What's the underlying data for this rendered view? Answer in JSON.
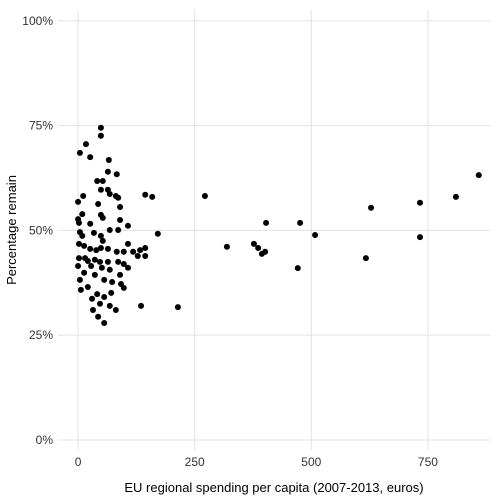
{
  "chart_data": {
    "type": "scatter",
    "x_label": "EU regional spending per capita (2007-2013, euros)",
    "y_label": "Percentage remain",
    "color": "#000000",
    "grid": true,
    "xlim": [
      -43,
      883
    ],
    "ylim": [
      -2.4,
      102.6
    ],
    "xticks": [
      0,
      250,
      500,
      750
    ],
    "yticks": [
      {
        "value": 0,
        "label": "0%"
      },
      {
        "value": 25,
        "label": "25%"
      },
      {
        "value": 50,
        "label": "50%"
      },
      {
        "value": 75,
        "label": "75%"
      },
      {
        "value": 100,
        "label": "100%"
      }
    ],
    "x": [
      859,
      810,
      733,
      733,
      628,
      617,
      508,
      476,
      471,
      319,
      377,
      386,
      394,
      401,
      403,
      272,
      214,
      171,
      159,
      144,
      135,
      49,
      49,
      17,
      4,
      26,
      66,
      64,
      83,
      41,
      53,
      49,
      64,
      68,
      81,
      86,
      11,
      0,
      43,
      90,
      9,
      49,
      53,
      0,
      2,
      90,
      26,
      86,
      107,
      68,
      4,
      9,
      34,
      49,
      53,
      107,
      2,
      13,
      26,
      39,
      49,
      64,
      83,
      98,
      118,
      133,
      144,
      128,
      144,
      2,
      15,
      21,
      36,
      47,
      64,
      86,
      98,
      0,
      28,
      51,
      68,
      107,
      13,
      36,
      90,
      4,
      56,
      73,
      92,
      21,
      98,
      6,
      41,
      71,
      56,
      30,
      47,
      68,
      81,
      32,
      43,
      56
    ],
    "y": [
      63.2,
      58.0,
      56.6,
      48.4,
      55.4,
      43.4,
      48.9,
      51.8,
      41.0,
      46.1,
      46.8,
      45.8,
      44.4,
      44.9,
      51.8,
      58.2,
      31.7,
      49.2,
      58.0,
      58.5,
      32.0,
      74.5,
      72.6,
      70.6,
      68.5,
      67.5,
      66.8,
      64.0,
      63.4,
      61.8,
      61.8,
      59.7,
      59.7,
      58.7,
      58.2,
      57.8,
      58.2,
      56.8,
      56.3,
      55.6,
      53.9,
      53.7,
      53.0,
      52.7,
      51.8,
      52.5,
      51.6,
      50.1,
      51.1,
      50.1,
      49.6,
      48.7,
      49.4,
      48.7,
      47.5,
      46.8,
      46.8,
      46.3,
      45.6,
      45.3,
      45.8,
      45.6,
      44.9,
      44.9,
      44.9,
      45.3,
      45.8,
      43.9,
      43.9,
      43.4,
      43.4,
      42.7,
      43.0,
      42.5,
      42.5,
      42.5,
      42.0,
      41.5,
      41.5,
      41.1,
      40.6,
      41.1,
      39.9,
      39.4,
      39.4,
      38.2,
      38.2,
      37.7,
      37.2,
      36.5,
      36.3,
      35.8,
      34.8,
      35.1,
      34.1,
      33.7,
      32.5,
      32.0,
      31.0,
      31.0,
      29.4,
      27.9
    ]
  }
}
